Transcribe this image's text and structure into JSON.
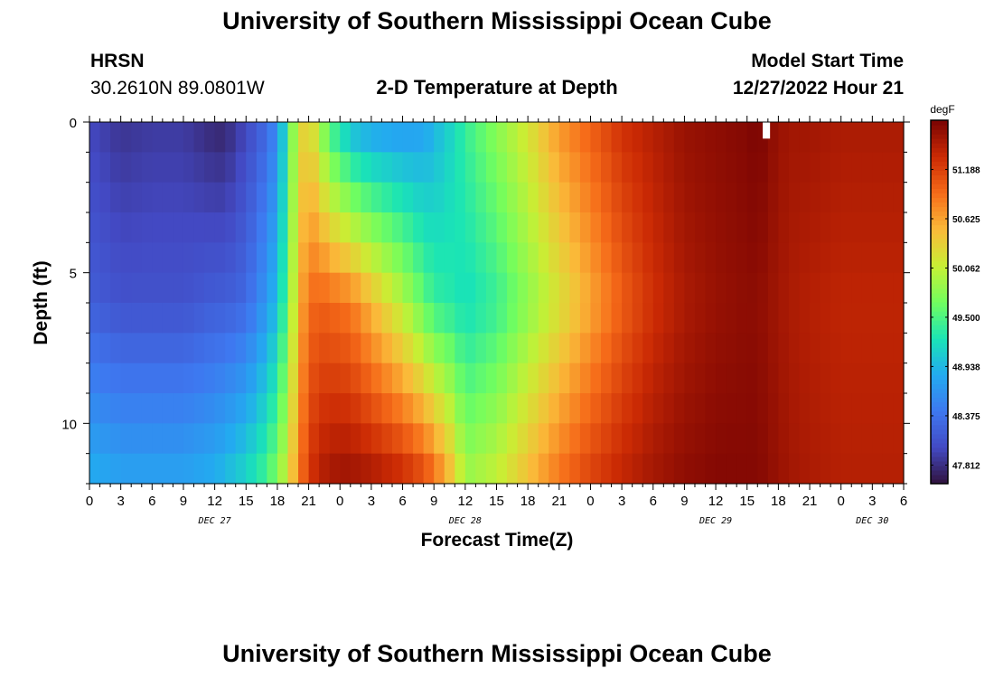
{
  "header": {
    "title": "University of Southern Mississippi Ocean Cube",
    "station": "HRSN",
    "coordinates": "30.2610N  89.0801W",
    "subtitle": "2-D Temperature at Depth",
    "model_start_label": "Model Start Time",
    "model_start_value": "12/27/2022 Hour 21"
  },
  "footer": {
    "title": "University of Southern Mississippi Ocean Cube"
  },
  "chart_data": {
    "type": "heatmap",
    "title": "2-D Temperature at Depth",
    "xlabel": "Forecast Time(Z)",
    "ylabel": "Depth (ft)",
    "x_tick_labels": [
      "0",
      "3",
      "6",
      "9",
      "12",
      "15",
      "18",
      "21",
      "0",
      "3",
      "6",
      "9",
      "12",
      "15",
      "18",
      "21",
      "0",
      "3",
      "6",
      "9",
      "12",
      "15",
      "18",
      "21",
      "0",
      "3",
      "6"
    ],
    "date_labels": [
      "DEC 27",
      "DEC 28",
      "DEC 29",
      "DEC 30"
    ],
    "date_label_hours": [
      12,
      36,
      60,
      75
    ],
    "x_range_hours": [
      0,
      78
    ],
    "y_tick_labels": [
      "0",
      "5",
      "10"
    ],
    "y_tick_values": [
      0,
      5,
      10
    ],
    "y_range_ft": [
      0,
      12
    ],
    "colorbar": {
      "unit": "degF",
      "tick_labels": [
        "47.812",
        "48.375",
        "48.938",
        "49.500",
        "50.062",
        "50.625",
        "51.188"
      ],
      "tick_values": [
        47.812,
        48.375,
        48.938,
        49.5,
        50.062,
        50.625,
        51.188
      ],
      "range": [
        47.6,
        51.75
      ]
    },
    "profiles": {
      "hours": [
        0,
        3,
        6,
        9,
        12,
        13,
        15,
        17,
        18,
        19,
        20,
        21,
        22,
        23,
        24,
        25,
        27,
        30,
        32,
        33,
        35,
        36,
        39,
        42,
        45,
        48,
        51,
        54,
        57,
        60,
        63,
        64,
        65,
        66,
        67,
        69,
        72,
        75,
        78
      ],
      "rows": {
        "surface": [
          48.0,
          47.85,
          47.9,
          47.9,
          47.75,
          47.75,
          48.0,
          48.3,
          48.6,
          49.4,
          50.2,
          50.35,
          49.95,
          49.4,
          49.2,
          48.9,
          48.75,
          48.7,
          48.75,
          48.9,
          49.2,
          49.4,
          49.8,
          50.2,
          50.7,
          51.0,
          51.3,
          51.45,
          51.6,
          51.65,
          51.7,
          51.75,
          51.68,
          51.6,
          51.55,
          51.55,
          51.5,
          51.5,
          51.5
        ],
        "mid": [
          48.2,
          48.1,
          48.1,
          48.1,
          48.2,
          48.2,
          48.3,
          48.7,
          49.0,
          49.6,
          50.5,
          50.9,
          51.0,
          50.95,
          50.9,
          50.85,
          50.5,
          50.0,
          49.6,
          49.4,
          49.3,
          49.2,
          49.4,
          49.8,
          50.2,
          50.6,
          51.0,
          51.3,
          51.5,
          51.6,
          51.65,
          51.65,
          51.6,
          51.55,
          51.5,
          51.45,
          51.4,
          51.4,
          51.4
        ],
        "bottom": [
          48.9,
          48.8,
          48.8,
          48.8,
          48.9,
          49.0,
          49.2,
          49.5,
          49.8,
          50.2,
          50.8,
          51.25,
          51.45,
          51.55,
          51.6,
          51.6,
          51.55,
          51.4,
          51.2,
          51.0,
          50.4,
          49.9,
          50.1,
          50.5,
          50.9,
          51.2,
          51.4,
          51.55,
          51.65,
          51.7,
          51.7,
          51.7,
          51.65,
          51.6,
          51.55,
          51.5,
          51.45,
          51.45,
          51.45
        ]
      }
    }
  },
  "colors": {
    "background": "#ffffff",
    "text": "#000000",
    "missing_cell": "#ffffff"
  }
}
